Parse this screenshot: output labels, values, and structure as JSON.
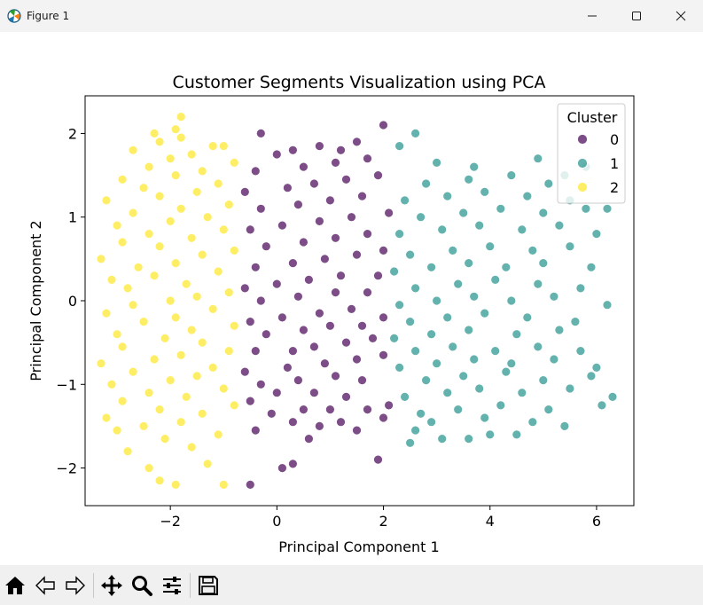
{
  "window": {
    "title": "Figure 1",
    "controls": [
      "minimize-icon",
      "maximize-icon",
      "close-icon"
    ]
  },
  "toolbar": {
    "tools": [
      "home-icon",
      "back-arrow-icon",
      "forward-arrow-icon",
      "pan-icon",
      "zoom-icon",
      "configure-subplots-icon",
      "save-icon"
    ]
  },
  "chart_data": {
    "type": "scatter",
    "title": "Customer Segments Visualization using PCA",
    "xlabel": "Principal Component 1",
    "ylabel": "Principal Component 2",
    "xlim": [
      -3.6,
      6.7
    ],
    "ylim": [
      -2.45,
      2.45
    ],
    "xticks": [
      -2,
      0,
      2,
      4,
      6
    ],
    "yticks": [
      -2,
      -1,
      0,
      1,
      2
    ],
    "grid": false,
    "legend": {
      "title": "Cluster",
      "placement": "upper right"
    },
    "series": [
      {
        "name": "0",
        "color": "#440154",
        "points": [
          [
            -0.5,
            -2.2
          ],
          [
            0.1,
            -2.0
          ],
          [
            0.3,
            -1.95
          ],
          [
            1.9,
            -1.9
          ],
          [
            0.6,
            -1.65
          ],
          [
            1.5,
            -1.55
          ],
          [
            -0.4,
            -1.55
          ],
          [
            0.8,
            -1.5
          ],
          [
            0.3,
            -1.45
          ],
          [
            1.2,
            -1.45
          ],
          [
            2.0,
            -1.4
          ],
          [
            -0.1,
            -1.35
          ],
          [
            0.5,
            -1.3
          ],
          [
            1.0,
            -1.3
          ],
          [
            1.7,
            -1.3
          ],
          [
            -0.5,
            -1.2
          ],
          [
            0.0,
            -1.1
          ],
          [
            0.7,
            -1.1
          ],
          [
            1.3,
            -1.15
          ],
          [
            2.1,
            -1.25
          ],
          [
            -0.3,
            -1.0
          ],
          [
            0.4,
            -0.95
          ],
          [
            1.1,
            -0.9
          ],
          [
            1.6,
            -0.95
          ],
          [
            -0.6,
            -0.85
          ],
          [
            0.2,
            -0.8
          ],
          [
            0.9,
            -0.75
          ],
          [
            1.5,
            -0.7
          ],
          [
            2.0,
            -0.65
          ],
          [
            -0.4,
            -0.6
          ],
          [
            0.3,
            -0.6
          ],
          [
            0.7,
            -0.55
          ],
          [
            1.3,
            -0.5
          ],
          [
            1.8,
            -0.45
          ],
          [
            -0.2,
            -0.4
          ],
          [
            0.5,
            -0.35
          ],
          [
            1.0,
            -0.3
          ],
          [
            1.6,
            -0.3
          ],
          [
            -0.5,
            -0.25
          ],
          [
            0.1,
            -0.2
          ],
          [
            0.8,
            -0.15
          ],
          [
            1.4,
            -0.1
          ],
          [
            2.0,
            -0.2
          ],
          [
            -0.3,
            0.0
          ],
          [
            0.4,
            0.05
          ],
          [
            1.1,
            0.1
          ],
          [
            1.7,
            0.1
          ],
          [
            -0.6,
            0.15
          ],
          [
            0.0,
            0.2
          ],
          [
            0.6,
            0.25
          ],
          [
            1.2,
            0.3
          ],
          [
            1.9,
            0.3
          ],
          [
            -0.4,
            0.4
          ],
          [
            0.3,
            0.45
          ],
          [
            0.9,
            0.5
          ],
          [
            1.5,
            0.55
          ],
          [
            2.0,
            0.6
          ],
          [
            -0.2,
            0.65
          ],
          [
            0.5,
            0.7
          ],
          [
            1.1,
            0.75
          ],
          [
            1.7,
            0.8
          ],
          [
            -0.5,
            0.85
          ],
          [
            0.1,
            0.9
          ],
          [
            0.8,
            0.95
          ],
          [
            1.4,
            1.0
          ],
          [
            2.1,
            1.05
          ],
          [
            -0.3,
            1.1
          ],
          [
            0.4,
            1.15
          ],
          [
            1.0,
            1.2
          ],
          [
            1.6,
            1.25
          ],
          [
            -0.6,
            1.3
          ],
          [
            0.2,
            1.35
          ],
          [
            0.7,
            1.4
          ],
          [
            1.3,
            1.45
          ],
          [
            1.9,
            1.5
          ],
          [
            -0.4,
            1.55
          ],
          [
            0.5,
            1.6
          ],
          [
            1.1,
            1.65
          ],
          [
            1.7,
            1.7
          ],
          [
            0.3,
            1.8
          ],
          [
            0.8,
            1.85
          ],
          [
            1.5,
            1.9
          ],
          [
            -0.3,
            2.0
          ],
          [
            0.0,
            1.75
          ],
          [
            1.2,
            1.8
          ],
          [
            2.0,
            2.1
          ]
        ]
      },
      {
        "name": "1",
        "color": "#21918c",
        "points": [
          [
            2.5,
            -1.7
          ],
          [
            3.1,
            -1.65
          ],
          [
            3.6,
            -1.65
          ],
          [
            4.0,
            -1.6
          ],
          [
            2.6,
            -1.55
          ],
          [
            4.5,
            -1.6
          ],
          [
            5.4,
            -1.5
          ],
          [
            2.9,
            -1.45
          ],
          [
            3.9,
            -1.4
          ],
          [
            4.8,
            -1.45
          ],
          [
            2.7,
            -1.35
          ],
          [
            3.4,
            -1.3
          ],
          [
            4.2,
            -1.25
          ],
          [
            5.1,
            -1.3
          ],
          [
            6.1,
            -1.25
          ],
          [
            2.4,
            -1.15
          ],
          [
            3.2,
            -1.1
          ],
          [
            3.8,
            -1.05
          ],
          [
            4.6,
            -1.1
          ],
          [
            5.5,
            -1.05
          ],
          [
            6.3,
            -1.15
          ],
          [
            2.8,
            -0.95
          ],
          [
            3.5,
            -0.9
          ],
          [
            4.3,
            -0.85
          ],
          [
            5.0,
            -0.95
          ],
          [
            5.9,
            -0.9
          ],
          [
            2.3,
            -0.8
          ],
          [
            3.0,
            -0.75
          ],
          [
            3.7,
            -0.7
          ],
          [
            4.4,
            -0.75
          ],
          [
            5.2,
            -0.7
          ],
          [
            6.0,
            -0.8
          ],
          [
            2.6,
            -0.6
          ],
          [
            3.3,
            -0.55
          ],
          [
            4.1,
            -0.6
          ],
          [
            4.9,
            -0.55
          ],
          [
            5.7,
            -0.6
          ],
          [
            2.2,
            -0.45
          ],
          [
            2.9,
            -0.4
          ],
          [
            3.6,
            -0.35
          ],
          [
            4.5,
            -0.4
          ],
          [
            5.3,
            -0.35
          ],
          [
            2.5,
            -0.25
          ],
          [
            3.2,
            -0.2
          ],
          [
            3.9,
            -0.15
          ],
          [
            4.7,
            -0.2
          ],
          [
            5.6,
            -0.25
          ],
          [
            2.3,
            -0.05
          ],
          [
            3.0,
            0.0
          ],
          [
            3.7,
            0.05
          ],
          [
            4.4,
            0.0
          ],
          [
            5.2,
            0.05
          ],
          [
            6.2,
            -0.05
          ],
          [
            2.6,
            0.15
          ],
          [
            3.4,
            0.2
          ],
          [
            4.1,
            0.25
          ],
          [
            4.9,
            0.2
          ],
          [
            5.7,
            0.15
          ],
          [
            2.2,
            0.35
          ],
          [
            2.9,
            0.4
          ],
          [
            3.6,
            0.45
          ],
          [
            4.3,
            0.4
          ],
          [
            5.0,
            0.45
          ],
          [
            5.9,
            0.4
          ],
          [
            2.5,
            0.55
          ],
          [
            3.3,
            0.6
          ],
          [
            4.0,
            0.65
          ],
          [
            4.8,
            0.6
          ],
          [
            5.5,
            0.65
          ],
          [
            2.3,
            0.8
          ],
          [
            3.1,
            0.85
          ],
          [
            3.8,
            0.9
          ],
          [
            4.6,
            0.85
          ],
          [
            5.3,
            0.9
          ],
          [
            6.0,
            0.8
          ],
          [
            2.7,
            1.0
          ],
          [
            3.5,
            1.05
          ],
          [
            4.2,
            1.1
          ],
          [
            5.0,
            1.05
          ],
          [
            5.8,
            1.1
          ],
          [
            2.4,
            1.2
          ],
          [
            3.2,
            1.25
          ],
          [
            3.9,
            1.3
          ],
          [
            4.7,
            1.25
          ],
          [
            5.5,
            1.2
          ],
          [
            6.2,
            1.1
          ],
          [
            2.8,
            1.4
          ],
          [
            3.6,
            1.45
          ],
          [
            4.4,
            1.5
          ],
          [
            5.1,
            1.4
          ],
          [
            3.0,
            1.65
          ],
          [
            3.7,
            1.6
          ],
          [
            4.9,
            1.7
          ],
          [
            5.4,
            1.5
          ],
          [
            2.6,
            2.0
          ],
          [
            2.3,
            1.85
          ],
          [
            5.8,
            1.6
          ]
        ]
      },
      {
        "name": "2",
        "color": "#fde725",
        "points": [
          [
            -1.9,
            -2.2
          ],
          [
            -2.2,
            -2.15
          ],
          [
            -1.0,
            -2.2
          ],
          [
            -2.4,
            -2.0
          ],
          [
            -1.3,
            -1.95
          ],
          [
            -2.8,
            -1.8
          ],
          [
            -1.6,
            -1.75
          ],
          [
            -2.1,
            -1.65
          ],
          [
            -3.0,
            -1.55
          ],
          [
            -1.1,
            -1.6
          ],
          [
            -2.5,
            -1.5
          ],
          [
            -1.8,
            -1.45
          ],
          [
            -3.2,
            -1.4
          ],
          [
            -1.4,
            -1.35
          ],
          [
            -2.2,
            -1.3
          ],
          [
            -0.8,
            -1.25
          ],
          [
            -2.9,
            -1.2
          ],
          [
            -1.7,
            -1.15
          ],
          [
            -2.4,
            -1.1
          ],
          [
            -1.0,
            -1.05
          ],
          [
            -3.1,
            -1.0
          ],
          [
            -2.0,
            -0.95
          ],
          [
            -1.5,
            -0.9
          ],
          [
            -2.7,
            -0.85
          ],
          [
            -1.2,
            -0.8
          ],
          [
            -3.3,
            -0.75
          ],
          [
            -2.3,
            -0.7
          ],
          [
            -1.8,
            -0.65
          ],
          [
            -0.9,
            -0.6
          ],
          [
            -2.9,
            -0.55
          ],
          [
            -1.4,
            -0.5
          ],
          [
            -2.1,
            -0.45
          ],
          [
            -3.0,
            -0.4
          ],
          [
            -1.6,
            -0.35
          ],
          [
            -0.8,
            -0.3
          ],
          [
            -2.5,
            -0.25
          ],
          [
            -1.9,
            -0.2
          ],
          [
            -3.2,
            -0.15
          ],
          [
            -1.2,
            -0.1
          ],
          [
            -2.7,
            -0.05
          ],
          [
            -2.0,
            0.0
          ],
          [
            -1.5,
            0.05
          ],
          [
            -0.9,
            0.1
          ],
          [
            -2.8,
            0.15
          ],
          [
            -1.7,
            0.2
          ],
          [
            -3.1,
            0.25
          ],
          [
            -2.3,
            0.3
          ],
          [
            -1.1,
            0.35
          ],
          [
            -2.6,
            0.4
          ],
          [
            -1.9,
            0.45
          ],
          [
            -3.3,
            0.5
          ],
          [
            -1.4,
            0.55
          ],
          [
            -0.8,
            0.6
          ],
          [
            -2.2,
            0.65
          ],
          [
            -2.9,
            0.7
          ],
          [
            -1.6,
            0.75
          ],
          [
            -2.4,
            0.8
          ],
          [
            -1.0,
            0.85
          ],
          [
            -3.0,
            0.9
          ],
          [
            -2.0,
            0.95
          ],
          [
            -1.3,
            1.0
          ],
          [
            -2.7,
            1.05
          ],
          [
            -1.8,
            1.1
          ],
          [
            -0.9,
            1.15
          ],
          [
            -3.2,
            1.2
          ],
          [
            -2.2,
            1.25
          ],
          [
            -1.5,
            1.3
          ],
          [
            -2.5,
            1.35
          ],
          [
            -1.1,
            1.4
          ],
          [
            -2.9,
            1.45
          ],
          [
            -1.9,
            1.5
          ],
          [
            -1.4,
            1.55
          ],
          [
            -2.4,
            1.6
          ],
          [
            -0.8,
            1.65
          ],
          [
            -2.0,
            1.7
          ],
          [
            -1.6,
            1.75
          ],
          [
            -2.7,
            1.8
          ],
          [
            -1.2,
            1.85
          ],
          [
            -2.2,
            1.9
          ],
          [
            -1.8,
            1.95
          ],
          [
            -1.0,
            1.85
          ],
          [
            -1.9,
            2.05
          ],
          [
            -1.8,
            2.2
          ],
          [
            -2.3,
            2.0
          ]
        ]
      }
    ]
  }
}
